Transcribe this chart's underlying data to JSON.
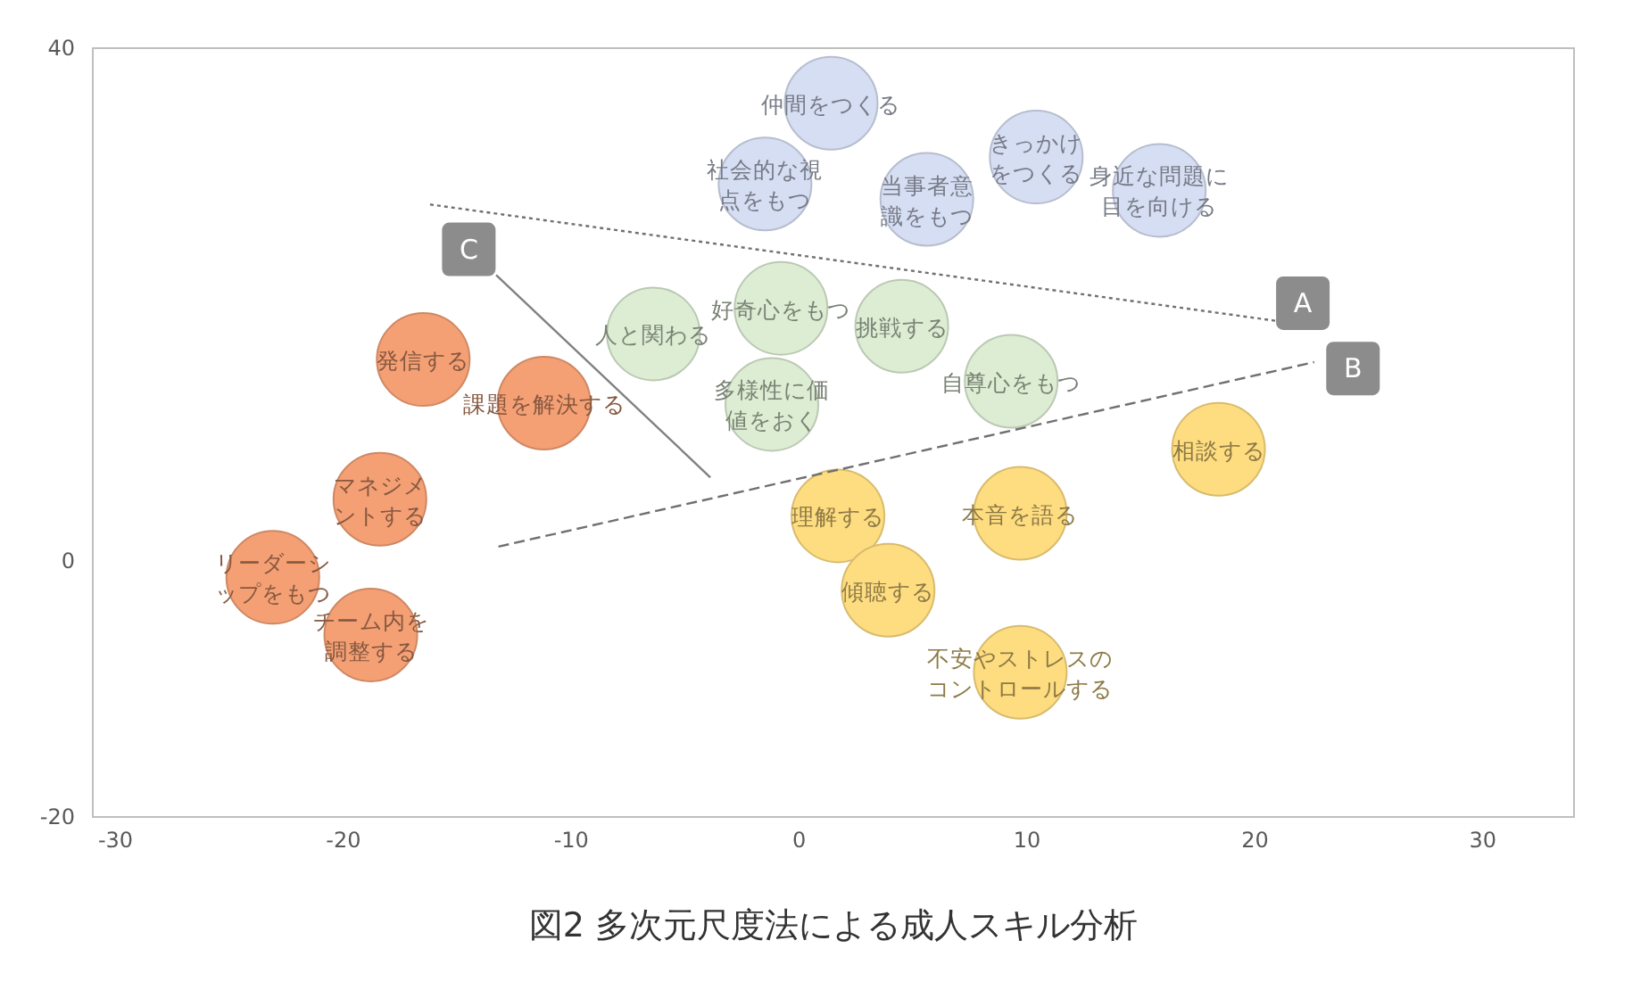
{
  "chart_data": {
    "type": "scatter",
    "title": "図2 多次元尺度法による成人スキル分析",
    "grid": false,
    "xlim": [
      -31,
      34
    ],
    "ylim": [
      -20,
      40
    ],
    "xticks": [
      -30,
      -20,
      -10,
      0,
      10,
      20,
      30
    ],
    "yticks": [
      -20,
      0,
      40
    ],
    "series": [
      {
        "marker": "circle",
        "color": "#d6def3",
        "x": [
          1.4,
          -1.5,
          5.6,
          10.4,
          15.8
        ],
        "values": [
          35.7,
          29.4,
          28.2,
          31.5,
          28.9
        ]
      },
      {
        "marker": "circle",
        "color": "#dcedd3",
        "x": [
          -6.4,
          -0.8,
          4.5,
          -1.2,
          9.3
        ],
        "values": [
          17.7,
          19.7,
          18.3,
          12.2,
          14.0
        ]
      },
      {
        "marker": "circle",
        "color": "#f4a074",
        "x": [
          -16.5,
          -11.2,
          -18.4,
          -23.1,
          -18.8
        ],
        "values": [
          15.7,
          12.3,
          4.8,
          -1.3,
          -5.8
        ]
      },
      {
        "marker": "circle",
        "color": "#fedc80",
        "x": [
          1.7,
          9.7,
          18.4,
          3.9,
          9.7
        ],
        "values": [
          3.5,
          3.7,
          8.7,
          -2.3,
          -8.7
        ]
      },
      {
        "type": "line",
        "color": "#707070",
        "line_style": "dotted",
        "x": [
          -16.2,
          21.0
        ],
        "values": [
          27.8,
          18.7
        ]
      },
      {
        "type": "line",
        "color": "#707070",
        "line_style": "dashed",
        "x": [
          -13.2,
          22.6
        ],
        "values": [
          1.1,
          15.5
        ]
      },
      {
        "type": "line",
        "color": "#808080",
        "line_style": "solid",
        "x": [
          -13.3,
          -3.9
        ],
        "values": [
          22.3,
          6.5
        ]
      }
    ],
    "annotations": [
      {
        "text": "仲間をつくる",
        "x": 1.4,
        "y": 35.7
      },
      {
        "text": "社会的な視点をもつ",
        "x": -1.5,
        "y": 29.4
      },
      {
        "text": "当事者意識をもつ",
        "x": 5.6,
        "y": 28.2
      },
      {
        "text": "きっかけをつくる",
        "x": 10.4,
        "y": 31.5
      },
      {
        "text": "身近な問題に目を向ける",
        "x": 15.8,
        "y": 28.9
      },
      {
        "text": "人と関わる",
        "x": -6.4,
        "y": 17.7
      },
      {
        "text": "好奇心をもつ",
        "x": -0.8,
        "y": 19.7
      },
      {
        "text": "挑戦する",
        "x": 4.5,
        "y": 18.3
      },
      {
        "text": "多様性に価値をおく",
        "x": -1.2,
        "y": 12.2
      },
      {
        "text": "自尊心をもつ",
        "x": 9.3,
        "y": 14.0
      },
      {
        "text": "発信する",
        "x": -16.5,
        "y": 15.7
      },
      {
        "text": "課題を解決する",
        "x": -11.2,
        "y": 12.3
      },
      {
        "text": "マネジメントする",
        "x": -18.4,
        "y": 4.8
      },
      {
        "text": "リーダーシップをもつ",
        "x": -23.1,
        "y": -1.3
      },
      {
        "text": "チーム内を調整する",
        "x": -18.8,
        "y": -5.8
      },
      {
        "text": "理解する",
        "x": 1.7,
        "y": 3.5
      },
      {
        "text": "本音を語る",
        "x": 9.7,
        "y": 3.7
      },
      {
        "text": "相談する",
        "x": 18.4,
        "y": 8.7
      },
      {
        "text": "傾聴する",
        "x": 3.9,
        "y": -2.3
      },
      {
        "text": "不安やストレスのコントロールする",
        "x": 9.7,
        "y": -8.7
      },
      {
        "text": "A",
        "x": 22.1,
        "y": 20.1
      },
      {
        "text": "B",
        "x": 24.3,
        "y": 15.0
      },
      {
        "text": "C",
        "x": -14.5,
        "y": 24.3
      }
    ]
  }
}
